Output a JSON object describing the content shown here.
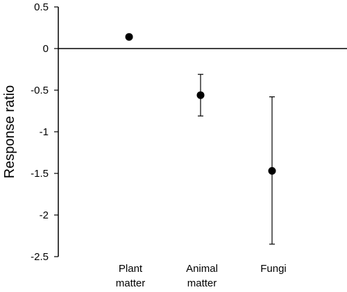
{
  "chart_data": {
    "type": "scatter",
    "title": "",
    "xlabel": "",
    "ylabel": "Response ratio",
    "ylim": [
      -2.5,
      0.5
    ],
    "yticks": [
      0.5,
      0,
      -0.5,
      -1,
      -1.5,
      -2,
      -2.5
    ],
    "yticklabels": [
      "0.5",
      "0",
      "-0.5",
      "-1",
      "-1.5",
      "-2",
      "-2.5"
    ],
    "categories": [
      [
        "Plant",
        "matter"
      ],
      [
        "Animal",
        "matter"
      ],
      [
        "Fungi"
      ]
    ],
    "points": [
      {
        "category": "Plant matter",
        "value": 0.14,
        "err_low": 0.14,
        "err_high": 0.14
      },
      {
        "category": "Animal matter",
        "value": -0.56,
        "err_low": -0.81,
        "err_high": -0.31
      },
      {
        "category": "Fungi",
        "value": -1.47,
        "err_low": -2.35,
        "err_high": -0.58
      }
    ],
    "grid": false,
    "legend": "none",
    "marker_color": "#000000"
  }
}
